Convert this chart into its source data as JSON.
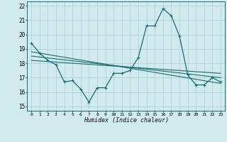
{
  "title": "",
  "xlabel": "Humidex (Indice chaleur)",
  "ylabel": "",
  "bg_color": "#d0eaed",
  "grid_color": "#a8cdd2",
  "line_color": "#1a6b6e",
  "x_ticks": [
    0,
    1,
    2,
    3,
    4,
    5,
    6,
    7,
    8,
    9,
    10,
    11,
    12,
    13,
    14,
    15,
    16,
    17,
    18,
    19,
    20,
    21,
    22,
    23
  ],
  "y_ticks": [
    15,
    16,
    17,
    18,
    19,
    20,
    21,
    22
  ],
  "xlim": [
    -0.5,
    23.5
  ],
  "ylim": [
    14.7,
    22.3
  ],
  "series": [
    {
      "x": [
        0,
        1,
        2,
        3,
        4,
        5,
        6,
        7,
        8,
        9,
        10,
        11,
        12,
        13,
        14,
        15,
        16,
        17,
        18,
        19,
        20,
        21,
        22,
        23
      ],
      "y": [
        19.4,
        18.7,
        18.2,
        17.9,
        16.7,
        16.8,
        16.2,
        15.3,
        16.3,
        16.3,
        17.3,
        17.3,
        17.5,
        18.4,
        20.6,
        20.6,
        21.8,
        21.3,
        19.9,
        17.2,
        16.5,
        16.5,
        17.0,
        16.7
      ]
    },
    {
      "x": [
        0,
        23
      ],
      "y": [
        18.8,
        16.6
      ]
    },
    {
      "x": [
        0,
        23
      ],
      "y": [
        18.5,
        17.0
      ]
    },
    {
      "x": [
        0,
        23
      ],
      "y": [
        18.2,
        17.3
      ]
    }
  ]
}
